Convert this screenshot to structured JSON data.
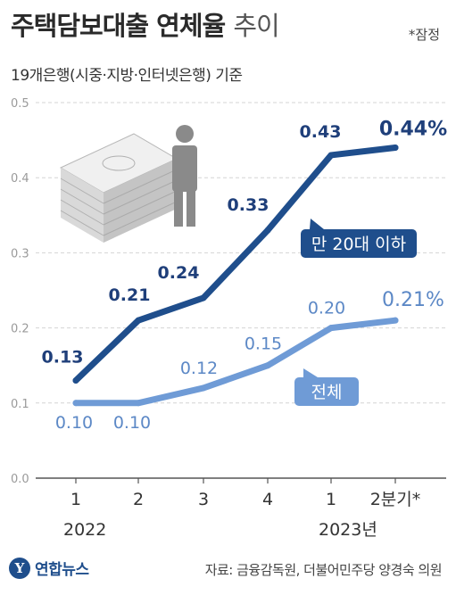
{
  "header": {
    "title_bold": "주택담보대출 연체율",
    "title_light": "추이",
    "provisional_note": "*잠정",
    "subtitle": "19개은행(시중·지방·인터넷은행) 기준"
  },
  "chart_data": {
    "type": "line",
    "categories": [
      "1",
      "2",
      "3",
      "4",
      "1",
      "2분기*"
    ],
    "year_labels": [
      "2022",
      "2023년"
    ],
    "ylim": [
      0,
      0.5
    ],
    "yticks": [
      "0.0",
      "0.1",
      "0.2",
      "0.3",
      "0.4",
      "0.5"
    ],
    "series": [
      {
        "name": "만 20대 이하",
        "values": [
          0.13,
          0.21,
          0.24,
          0.33,
          0.43,
          0.44
        ],
        "labels": [
          "0.13",
          "0.21",
          "0.24",
          "0.33",
          "0.43",
          "0.44%"
        ],
        "color": "#1f4e8c",
        "label_color": "#1f3f7a"
      },
      {
        "name": "전체",
        "values": [
          0.1,
          0.1,
          0.12,
          0.15,
          0.2,
          0.21
        ],
        "labels": [
          "0.10",
          "0.10",
          "0.12",
          "0.15",
          "0.20",
          "0.21%"
        ],
        "color": "#6f9bd6",
        "label_color": "#5c88c6"
      }
    ],
    "grid": true
  },
  "footer": {
    "logo_text": "연합뉴스",
    "source": "자료: 금융감독원, 더불어민주당 양경숙 의원"
  },
  "icons": [
    "money-stack-icon",
    "person-icon",
    "yonhap-logo-icon"
  ]
}
